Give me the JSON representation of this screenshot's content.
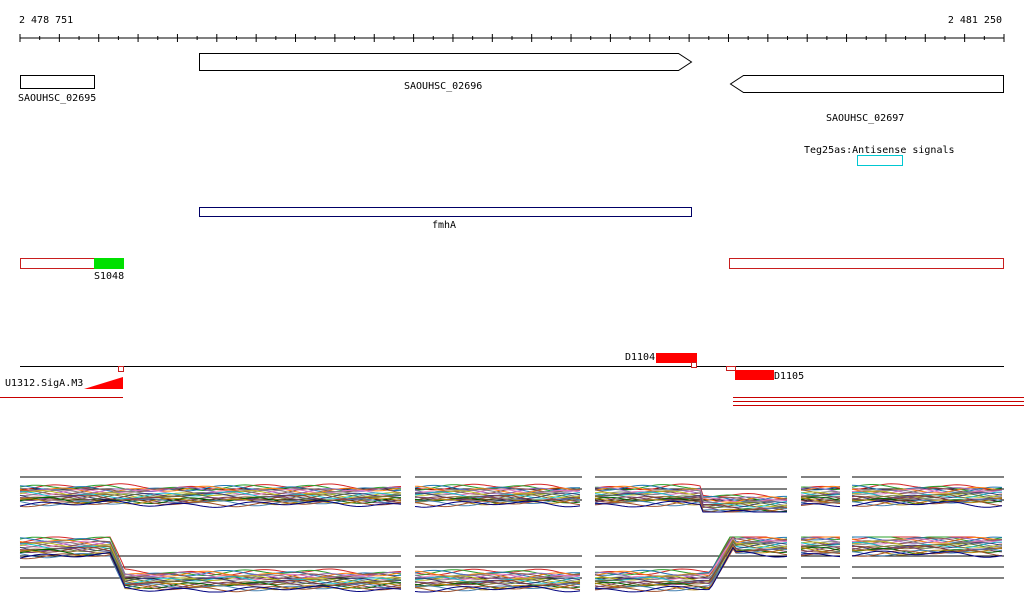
{
  "ruler": {
    "start_label": "2 478 751",
    "end_label": "2 481 250",
    "start": 2478751,
    "end": 2481250
  },
  "genes": [
    {
      "id": "gene-02695",
      "label": "SAOUHSC_02695",
      "strand": "none"
    },
    {
      "id": "gene-02696",
      "label": "SAOUHSC_02696",
      "strand": "forward"
    },
    {
      "id": "gene-02697",
      "label": "SAOUHSC_02697",
      "strand": "reverse"
    }
  ],
  "features": {
    "antisense_label": "Teg25as:Antisense signals",
    "fmha_label": "fmhA",
    "s1048_label": "S1048",
    "d1104_label": "D1104",
    "d1105_label": "D1105",
    "u1312_label": "U1312.SigA.M3"
  },
  "colors": {
    "axis": "#000000",
    "gene_outline": "#000000",
    "antisense_box": "#00c8d2",
    "fmha_box": "#000066",
    "segment_outline": "#c81e1e",
    "s1048_fill": "#00e000",
    "d_fill": "#ff0000",
    "red_lines": "#c80000",
    "track_baselines": "#000000"
  },
  "expression_series_colors": [
    "#d62728",
    "#2ca02c",
    "#1f77b4",
    "#ff7f0e",
    "#9467bd",
    "#8c564b",
    "#e377c2",
    "#7f7f7f",
    "#bcbd22",
    "#17becf",
    "#393b79",
    "#637939",
    "#8c6d31",
    "#843c39",
    "#7b4173",
    "#006400",
    "#b8860b",
    "#4682b4",
    "#a0522d",
    "#000080"
  ]
}
